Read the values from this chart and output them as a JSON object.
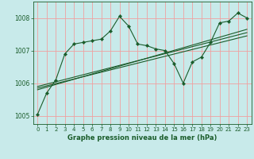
{
  "title": "Graphe pression niveau de la mer (hPa)",
  "bg_color": "#c8eaea",
  "grid_color": "#f0a0a0",
  "line_color": "#1a5c2a",
  "xlim": [
    -0.5,
    23.5
  ],
  "ylim": [
    1004.75,
    1008.5
  ],
  "xticks": [
    0,
    1,
    2,
    3,
    4,
    5,
    6,
    7,
    8,
    9,
    10,
    11,
    12,
    13,
    14,
    15,
    16,
    17,
    18,
    19,
    20,
    21,
    22,
    23
  ],
  "yticks": [
    1005,
    1006,
    1007,
    1008
  ],
  "main_x": [
    0,
    1,
    2,
    3,
    4,
    5,
    6,
    7,
    8,
    9,
    10,
    11,
    12,
    13,
    14,
    15,
    16,
    17,
    18,
    19,
    20,
    21,
    22,
    23
  ],
  "main_y": [
    1005.05,
    1005.7,
    1006.1,
    1006.9,
    1007.2,
    1007.25,
    1007.3,
    1007.35,
    1007.6,
    1008.05,
    1007.75,
    1007.2,
    1007.15,
    1007.05,
    1007.0,
    1006.6,
    1006.0,
    1006.65,
    1006.8,
    1007.25,
    1007.85,
    1007.9,
    1008.15,
    1008.0
  ],
  "linear_lines": [
    {
      "x": [
        0,
        23
      ],
      "y": [
        1005.9,
        1007.55
      ]
    },
    {
      "x": [
        0,
        23
      ],
      "y": [
        1005.85,
        1007.45
      ]
    },
    {
      "x": [
        0,
        23
      ],
      "y": [
        1005.8,
        1007.65
      ]
    }
  ]
}
